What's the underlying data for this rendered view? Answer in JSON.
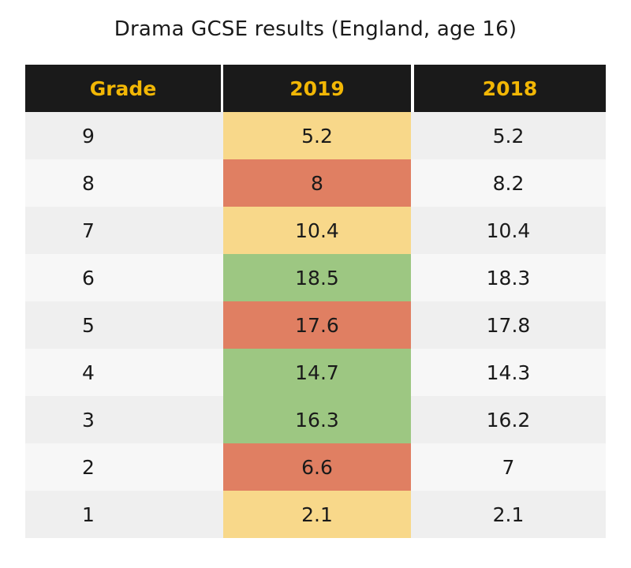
{
  "chart_data": {
    "type": "table",
    "title": "Drama GCSE results (England, age 16)",
    "columns": [
      "Grade",
      "2019",
      "2018"
    ],
    "rows": [
      {
        "grade": "9",
        "y2019": "5.2",
        "y2018": "5.2",
        "change": "same"
      },
      {
        "grade": "8",
        "y2019": "8",
        "y2018": "8.2",
        "change": "down"
      },
      {
        "grade": "7",
        "y2019": "10.4",
        "y2018": "10.4",
        "change": "same"
      },
      {
        "grade": "6",
        "y2019": "18.5",
        "y2018": "18.3",
        "change": "up"
      },
      {
        "grade": "5",
        "y2019": "17.6",
        "y2018": "17.8",
        "change": "down"
      },
      {
        "grade": "4",
        "y2019": "14.7",
        "y2018": "14.3",
        "change": "up"
      },
      {
        "grade": "3",
        "y2019": "16.3",
        "y2018": "16.2",
        "change": "up"
      },
      {
        "grade": "2",
        "y2019": "6.6",
        "y2018": "7",
        "change": "down"
      },
      {
        "grade": "1",
        "y2019": "2.1",
        "y2018": "2.1",
        "change": "same"
      }
    ]
  },
  "colors": {
    "header_bg": "#1a1a1a",
    "header_text": "#f2b705",
    "up": "#9dc782",
    "down": "#e07f62",
    "same": "#f8d88a",
    "row_odd": "#efefef",
    "row_even": "#f7f7f7"
  }
}
